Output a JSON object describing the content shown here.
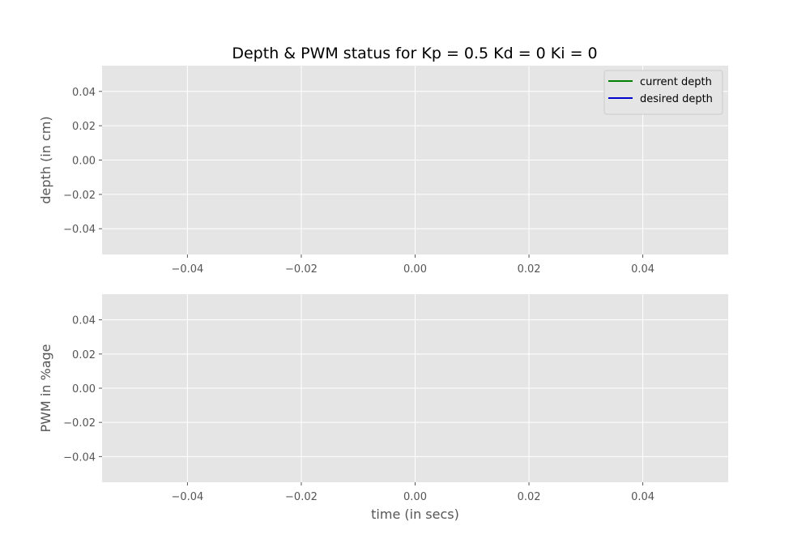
{
  "colors": {
    "plot_background": "#e5e5e5",
    "grid": "#ffffff",
    "tick": "#555555",
    "current_depth": "#008000",
    "desired_depth": "#0000cc"
  },
  "chart_data": [
    {
      "type": "line",
      "title": "Depth & PWM status for Kp = 0.5 Kd = 0 Ki = 0",
      "xlabel": "",
      "ylabel": "depth (in cm)",
      "xlim": [
        -0.055,
        0.055
      ],
      "ylim": [
        -0.055,
        0.055
      ],
      "x_ticks": [
        -0.04,
        -0.02,
        0.0,
        0.02,
        0.04
      ],
      "x_tick_labels": [
        "−0.04",
        "−0.02",
        "0.00",
        "0.02",
        "0.04"
      ],
      "y_ticks": [
        0.04,
        0.02,
        0.0,
        -0.02,
        -0.04
      ],
      "y_tick_labels": [
        "0.04",
        "0.02",
        "0.00",
        "−0.02",
        "−0.04"
      ],
      "grid": true,
      "legend_position": "top-right",
      "series": [
        {
          "name": "current depth",
          "color": "#008000",
          "x": [],
          "y": []
        },
        {
          "name": "desired depth",
          "color": "#0000cc",
          "x": [],
          "y": []
        }
      ]
    },
    {
      "type": "line",
      "title": "",
      "xlabel": "time (in secs)",
      "ylabel": "PWM in %age",
      "xlim": [
        -0.055,
        0.055
      ],
      "ylim": [
        -0.055,
        0.055
      ],
      "x_ticks": [
        -0.04,
        -0.02,
        0.0,
        0.02,
        0.04
      ],
      "x_tick_labels": [
        "−0.04",
        "−0.02",
        "0.00",
        "0.02",
        "0.04"
      ],
      "y_ticks": [
        0.04,
        0.02,
        0.0,
        -0.02,
        -0.04
      ],
      "y_tick_labels": [
        "0.04",
        "0.02",
        "0.00",
        "−0.02",
        "−0.04"
      ],
      "grid": true,
      "series": []
    }
  ]
}
